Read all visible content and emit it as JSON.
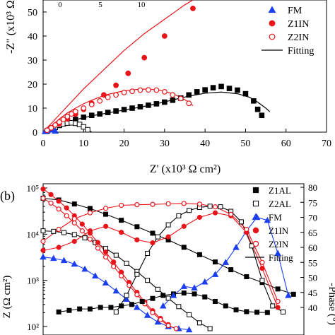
{
  "figure_title": "",
  "chart_data": [
    {
      "type": "scatter",
      "panel": "a",
      "panel_label": "",
      "title": "",
      "xlabel": "Z' (x10³ Ω cm²)",
      "ylabel": "-Z\" (x10³ Ω",
      "xlim": [
        0,
        70
      ],
      "ylim": [
        0,
        55
      ],
      "xticks": [
        "0",
        "10",
        "20",
        "30",
        "40",
        "50",
        "60",
        "70"
      ],
      "yticks": [
        "0",
        "10",
        "20",
        "30",
        "40",
        "50"
      ],
      "inset_ticks": [
        "0",
        "5",
        "10"
      ],
      "grid": false,
      "legend_position": "top-right",
      "legend": [
        {
          "name": "FM",
          "marker": "triangle",
          "color": "#1a3ff0",
          "filled": true
        },
        {
          "name": "Z1IN",
          "marker": "circle",
          "color": "#e8141a",
          "filled": true
        },
        {
          "name": "Z2IN",
          "marker": "circle",
          "color": "#e8141a",
          "filled": false
        },
        {
          "name": "Fitting",
          "marker": "line",
          "color": "#000000",
          "filled": false
        }
      ],
      "series": [
        {
          "name": "Z1AL",
          "marker": "square",
          "color": "#000000",
          "filled": true,
          "x": [
            1,
            2,
            3,
            4,
            5,
            6,
            8,
            10,
            12,
            14,
            16,
            18,
            20,
            22,
            24,
            26,
            28,
            30,
            32,
            34,
            36,
            38,
            40,
            42,
            44,
            46,
            48,
            50,
            52,
            53,
            54
          ],
          "y": [
            0.5,
            1.2,
            2.0,
            2.8,
            3.5,
            4.2,
            5.3,
            6.2,
            7.0,
            7.6,
            8.2,
            8.8,
            9.4,
            10.0,
            10.6,
            11.2,
            11.8,
            12.5,
            13.3,
            14.2,
            15.5,
            16.8,
            17.6,
            18.5,
            19.0,
            18.2,
            17.5,
            16.0,
            13.0,
            9.5,
            7.0
          ]
        },
        {
          "name": "Z1AL fitting",
          "marker": "line",
          "color": "#000000",
          "x": [
            0,
            2,
            5,
            8,
            12,
            16,
            20,
            24,
            28,
            32,
            36,
            40,
            44,
            48,
            51,
            53,
            55,
            56
          ],
          "y": [
            0,
            1.5,
            3.8,
            5.2,
            6.8,
            8.0,
            9.2,
            10.4,
            11.8,
            13.4,
            15.0,
            16.2,
            16.7,
            16.0,
            14.5,
            12.5,
            10.0,
            8.5
          ]
        },
        {
          "name": "Z2AL",
          "marker": "square",
          "color": "#000000",
          "filled": false,
          "x": [
            1,
            2,
            3,
            4,
            5,
            6,
            7,
            8,
            9,
            10,
            11
          ],
          "y": [
            0.5,
            1.3,
            2.2,
            3.0,
            3.5,
            3.8,
            3.9,
            3.7,
            3.2,
            2.2,
            1.0
          ]
        },
        {
          "name": "Z2AL fitting",
          "marker": "line",
          "color": "#000000",
          "x": [
            0,
            1,
            2,
            3,
            4,
            5,
            6,
            7,
            8,
            9,
            10,
            11,
            12
          ],
          "y": [
            0,
            0.8,
            1.8,
            2.8,
            3.5,
            4.0,
            4.2,
            4.1,
            3.7,
            3.0,
            2.0,
            1.0,
            0
          ]
        },
        {
          "name": "FM",
          "marker": "triangle",
          "color": "#1a3ff0",
          "filled": true,
          "x": [
            0.5,
            1.0,
            1.5,
            2.0,
            2.5,
            3.0
          ],
          "y": [
            0.3,
            0.7,
            1.1,
            1.3,
            1.0,
            0.5
          ]
        },
        {
          "name": "Z1IN",
          "marker": "circle",
          "color": "#e8141a",
          "filled": true,
          "x": [
            1,
            2,
            4,
            6,
            8,
            10,
            12,
            15,
            18,
            21,
            25,
            30,
            37
          ],
          "y": [
            0.8,
            1.8,
            3.5,
            5.5,
            7.5,
            9.5,
            12.0,
            15.5,
            19.5,
            24.5,
            31.0,
            40.0,
            51.5
          ]
        },
        {
          "name": "Z1IN fitting",
          "marker": "line",
          "color": "#e8141a",
          "x": [
            0,
            5,
            10,
            15,
            20,
            25,
            30,
            35,
            37
          ],
          "y": [
            0,
            9,
            18,
            26,
            34,
            41,
            47,
            53,
            55
          ]
        },
        {
          "name": "Z2IN",
          "marker": "circle",
          "color": "#e8141a",
          "filled": false,
          "x": [
            1,
            2,
            3,
            4,
            5,
            6,
            7,
            8,
            10,
            12,
            14,
            16,
            18,
            20,
            22,
            24,
            26,
            28,
            30,
            32,
            34,
            36
          ],
          "y": [
            0.8,
            1.8,
            3.0,
            4.2,
            5.3,
            6.5,
            7.6,
            8.6,
            10.0,
            11.5,
            13.0,
            14.5,
            15.5,
            16.5,
            17.0,
            17.5,
            17.6,
            17.5,
            16.8,
            15.5,
            14.0,
            12.0
          ]
        },
        {
          "name": "Z2IN fitting",
          "marker": "line",
          "color": "#e8141a",
          "x": [
            0,
            2,
            4,
            6,
            8,
            10,
            12,
            14,
            16,
            18,
            20,
            22,
            24,
            26,
            28,
            30,
            32,
            34,
            36,
            37
          ],
          "y": [
            0,
            2.5,
            5.5,
            8.0,
            10.0,
            11.8,
            13.3,
            14.6,
            15.7,
            16.5,
            17.2,
            17.6,
            17.9,
            17.9,
            17.6,
            17.0,
            16.0,
            14.5,
            12.5,
            11.0
          ]
        }
      ]
    },
    {
      "type": "scatter",
      "panel": "b",
      "panel_label": "(b)",
      "title": "",
      "xlabel": "",
      "ylabel": "Z (Ω cm²)",
      "y2label": "-Phase (°)",
      "yscale": "log",
      "ylim": [
        100,
        100000
      ],
      "y2lim": [
        38,
        80
      ],
      "x_units": "log frequency (axis below visible area)",
      "xlim": [
        0,
        100
      ],
      "yticks": [
        "10²",
        "10³",
        "10⁴",
        "10⁵"
      ],
      "y2ticks": [
        "40",
        "45",
        "50",
        "55",
        "60",
        "65",
        "70",
        "75",
        "80"
      ],
      "grid": false,
      "legend_position": "top-right",
      "legend": [
        {
          "name": "Z1AL",
          "marker": "square",
          "color": "#000000",
          "filled": true
        },
        {
          "name": "Z2AL",
          "marker": "square",
          "color": "#000000",
          "filled": false
        },
        {
          "name": "FM",
          "marker": "triangle",
          "color": "#1a3ff0",
          "filled": true
        },
        {
          "name": "Z1IN",
          "marker": "circle",
          "color": "#e8141a",
          "filled": true
        },
        {
          "name": "Z2IN",
          "marker": "circle",
          "color": "#e8141a",
          "filled": false
        },
        {
          "name": "Fitting",
          "marker": "line",
          "color": "#000000",
          "filled": false
        }
      ],
      "series": [
        {
          "name": "Z1AL |Z|",
          "axis": "left",
          "marker": "square",
          "color": "#000000",
          "filled": true,
          "x": [
            0,
            6,
            12,
            18,
            24,
            30,
            36,
            42,
            48,
            54,
            60,
            66,
            72,
            78,
            84,
            90,
            96
          ],
          "y": [
            60000,
            55000,
            45000,
            36000,
            27000,
            20000,
            14500,
            10500,
            7500,
            5200,
            3600,
            2500,
            1700,
            1200,
            900,
            650,
            500
          ]
        },
        {
          "name": "Z2AL |Z|",
          "axis": "left",
          "marker": "square",
          "color": "#000000",
          "filled": false,
          "x": [
            0,
            4,
            8,
            12,
            16,
            20,
            24,
            28,
            32,
            36,
            40,
            44,
            48,
            52,
            56,
            60,
            64
          ],
          "y": [
            11800,
            11500,
            10800,
            9800,
            8300,
            6600,
            4900,
            3500,
            2350,
            1550,
            1000,
            640,
            410,
            270,
            180,
            120,
            90
          ]
        },
        {
          "name": "FM |Z|",
          "axis": "left",
          "marker": "triangle",
          "color": "#1a3ff0",
          "filled": true,
          "x": [
            0,
            4,
            8,
            12,
            16,
            20,
            24,
            28,
            32,
            36,
            40,
            44,
            48,
            52,
            56
          ],
          "y": [
            3200,
            3000,
            2700,
            2250,
            1750,
            1250,
            880,
            590,
            390,
            260,
            175,
            125,
            100,
            90,
            85
          ]
        },
        {
          "name": "Z1IN |Z|",
          "axis": "left",
          "marker": "circle",
          "color": "#e8141a",
          "filled": true,
          "x": [
            0,
            3,
            6,
            9,
            12,
            15,
            18,
            21,
            24,
            27,
            30,
            33,
            36,
            39,
            42,
            45,
            48
          ],
          "y": [
            95000,
            72000,
            52000,
            37000,
            25000,
            16500,
            10500,
            6600,
            4100,
            2500,
            1500,
            900,
            550,
            340,
            220,
            150,
            110
          ]
        },
        {
          "name": "Z2IN |Z|",
          "axis": "left",
          "marker": "circle",
          "color": "#e8141a",
          "filled": false,
          "x": [
            0,
            3,
            6,
            9,
            12,
            15,
            18,
            21,
            24,
            27,
            30,
            33,
            36,
            39,
            42,
            45,
            48,
            51
          ],
          "y": [
            60000,
            47000,
            35000,
            25000,
            17500,
            11800,
            7800,
            5000,
            3200,
            2000,
            1250,
            780,
            490,
            310,
            200,
            140,
            105,
            90
          ]
        },
        {
          "name": "Z1AL phase",
          "axis": "right",
          "marker": "square",
          "color": "#000000",
          "filled": true,
          "x": [
            6,
            10,
            14,
            18,
            22,
            26,
            30,
            34,
            38,
            42,
            46,
            50,
            54,
            58,
            62,
            66,
            70,
            74,
            78,
            82,
            86
          ],
          "y": [
            38.5,
            39.0,
            39.5,
            39.5,
            40.0,
            40.0,
            40.5,
            41.0,
            42.0,
            43.0,
            44.0,
            44.5,
            44.8,
            44.5,
            43.5,
            42.0,
            40.5,
            39.2,
            38.6,
            38.4,
            38.3
          ]
        },
        {
          "name": "Z2AL phase",
          "axis": "right",
          "marker": "square",
          "color": "#000000",
          "filled": false,
          "x": [
            28,
            32,
            36,
            40,
            44,
            48,
            52,
            56,
            60,
            64,
            68,
            72,
            76,
            80,
            84,
            88,
            92
          ],
          "y": [
            38.5,
            44.0,
            51.0,
            58.0,
            63.5,
            67.5,
            70.5,
            72.3,
            73.3,
            73.7,
            73.5,
            72.0,
            68.5,
            60.5,
            49.0,
            40.5,
            38.5
          ]
        },
        {
          "name": "FM phase",
          "axis": "right",
          "marker": "triangle",
          "color": "#1a3ff0",
          "filled": true,
          "x": [
            46,
            50,
            54,
            58,
            62,
            66,
            70,
            74,
            78,
            82,
            86,
            90,
            94
          ],
          "y": [
            40.5,
            44.0,
            47.0,
            46.5,
            48.5,
            51.0,
            55.0,
            60.0,
            65.5,
            70.0,
            69.0,
            58.0,
            44.0
          ]
        },
        {
          "name": "Z1IN phase",
          "axis": "right",
          "marker": "circle",
          "color": "#e8141a",
          "filled": true,
          "x": [
            0,
            6,
            12,
            18,
            24,
            30,
            36,
            42,
            48,
            54,
            60,
            66,
            72,
            78,
            84,
            90
          ],
          "y": [
            59.0,
            60.0,
            62.0,
            65.5,
            67.0,
            65.0,
            62.5,
            61.5,
            63.5,
            67.0,
            70.0,
            71.5,
            70.5,
            65.0,
            53.0,
            40.0
          ]
        },
        {
          "name": "Z2IN phase",
          "axis": "right",
          "marker": "circle",
          "color": "#e8141a",
          "filled": false,
          "x": [
            0,
            6,
            12,
            18,
            24,
            30,
            36,
            42,
            48,
            54,
            60,
            66,
            72,
            78,
            84,
            90
          ],
          "y": [
            62.0,
            66.0,
            69.5,
            71.5,
            73.0,
            74.0,
            74.2,
            74.3,
            74.5,
            74.6,
            74.4,
            73.5,
            71.0,
            66.0,
            55.0,
            42.0
          ]
        }
      ]
    }
  ]
}
